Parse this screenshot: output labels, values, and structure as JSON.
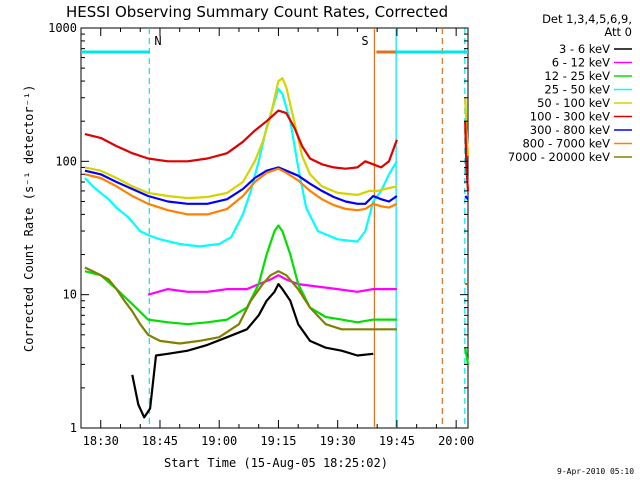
{
  "chart_data": {
    "type": "line",
    "title": "HESSI Observing Summary Count Rates, Corrected",
    "xlabel": "Start Time (15-Aug-05 18:25:02)",
    "ylabel": "Corrected Count Rate (s⁻¹ detector⁻¹)",
    "x_ticks": [
      "18:30",
      "18:45",
      "19:00",
      "19:15",
      "19:30",
      "19:45",
      "20:00"
    ],
    "x_tick_minutes": [
      5,
      20,
      35,
      50,
      65,
      80,
      95
    ],
    "xlim_minutes": [
      0,
      98
    ],
    "y_scale": "log",
    "ylim": [
      1,
      1000
    ],
    "y_ticks": [
      "1",
      "10",
      "100",
      "1000"
    ],
    "y_tick_values": [
      1,
      10,
      100,
      1000
    ],
    "legend_header": [
      "Det 1,3,4,5,6,9,",
      "Att 0"
    ],
    "legend_placement": "right",
    "markers": [
      {
        "label": "N",
        "color": "#00e5ee",
        "segments": [
          [
            0,
            17.3
          ]
        ],
        "y": 660,
        "lines": [
          {
            "x": 17.3,
            "style": "dashed"
          }
        ]
      },
      {
        "label": "S",
        "color": "#e07020",
        "segments": [
          [
            74.8,
            91.5
          ]
        ],
        "y": 660,
        "lines": [
          {
            "x": 74.3,
            "style": "solid"
          },
          {
            "x": 91.5,
            "style": "dashed"
          }
        ]
      },
      {
        "label": "",
        "color": "#00e5ee",
        "segments": [
          [
            79.8,
            98
          ]
        ],
        "y": 660,
        "lines": [
          {
            "x": 79.8,
            "style": "solid"
          },
          {
            "x": 97.2,
            "style": "dashed"
          }
        ]
      }
    ],
    "series": [
      {
        "name": "3 - 6 keV",
        "color": "#000000",
        "x": [
          13,
          14.5,
          16,
          17.5,
          19,
          22,
          27,
          32,
          37,
          42,
          45,
          47,
          49,
          50,
          51,
          53,
          55,
          58,
          62,
          66,
          70,
          74
        ],
        "y": [
          2.5,
          1.5,
          1.2,
          1.4,
          3.5,
          3.6,
          3.8,
          4.2,
          4.8,
          5.5,
          7,
          9,
          10.5,
          12,
          11,
          9,
          6,
          4.5,
          4.0,
          3.8,
          3.5,
          3.6
        ]
      },
      {
        "name": "6 - 12 keV",
        "color": "#ff00ff",
        "x": [
          17,
          22,
          27,
          32,
          37,
          42,
          45,
          48,
          50,
          52,
          55,
          60,
          65,
          70,
          74,
          76,
          78,
          80
        ],
        "y": [
          10,
          11,
          10.5,
          10.5,
          11,
          11,
          12,
          13,
          14,
          13,
          12,
          11.5,
          11,
          10.5,
          11,
          11,
          11,
          11
        ]
      },
      {
        "name": "12 - 25 keV",
        "color": "#00e000",
        "x": [
          1,
          5,
          9,
          13,
          17,
          22,
          27,
          32,
          37,
          42,
          45,
          47,
          49,
          50,
          51,
          53,
          55,
          58,
          62,
          66,
          70,
          74,
          76,
          78,
          80
        ],
        "y": [
          15,
          14,
          11,
          8.5,
          6.5,
          6.2,
          6,
          6.2,
          6.5,
          8,
          12,
          20,
          30,
          33,
          30,
          20,
          12,
          8,
          6.8,
          6.5,
          6.2,
          6.5,
          6.5,
          6.5,
          6.5
        ]
      },
      {
        "name": "25 - 50 keV",
        "color": "#00ffff",
        "x": [
          1,
          3,
          5,
          7,
          9,
          12,
          15,
          17,
          20,
          25,
          30,
          35,
          38,
          41,
          43,
          45,
          47,
          49,
          50,
          51,
          53,
          55,
          57,
          60,
          65,
          70,
          72,
          74,
          76,
          78,
          80
        ],
        "y": [
          75,
          65,
          58,
          52,
          45,
          38,
          30,
          28,
          26,
          24,
          23,
          24,
          27,
          40,
          60,
          100,
          180,
          280,
          350,
          320,
          200,
          90,
          45,
          30,
          26,
          25,
          30,
          50,
          60,
          80,
          100
        ]
      },
      {
        "name": "50 - 100 keV",
        "color": "#d4d400",
        "x": [
          1,
          5,
          9,
          13,
          17,
          22,
          27,
          32,
          37,
          41,
          44,
          46,
          48,
          50,
          51,
          52,
          54,
          56,
          58,
          61,
          65,
          70,
          73,
          75,
          77,
          80
        ],
        "y": [
          90,
          85,
          75,
          65,
          58,
          55,
          53,
          54,
          58,
          70,
          100,
          140,
          220,
          400,
          420,
          360,
          200,
          110,
          80,
          65,
          58,
          56,
          60,
          60,
          62,
          65
        ]
      },
      {
        "name": "100 - 300 keV",
        "color": "#e00000",
        "x": [
          1,
          5,
          9,
          13,
          17,
          22,
          27,
          32,
          37,
          41,
          44,
          47,
          50,
          52,
          54,
          56,
          58,
          61,
          64,
          67,
          70,
          72,
          74,
          76,
          78,
          80
        ],
        "y": [
          160,
          150,
          130,
          115,
          105,
          100,
          100,
          105,
          115,
          140,
          170,
          200,
          240,
          230,
          180,
          130,
          105,
          95,
          90,
          88,
          90,
          100,
          95,
          90,
          100,
          145
        ]
      },
      {
        "name": "300 - 800 keV",
        "color": "#0000ff",
        "x": [
          1,
          5,
          9,
          13,
          17,
          22,
          27,
          32,
          37,
          41,
          44,
          47,
          50,
          52,
          55,
          58,
          61,
          64,
          67,
          70,
          72,
          74,
          76,
          78,
          80
        ],
        "y": [
          85,
          80,
          70,
          62,
          55,
          50,
          48,
          48,
          52,
          62,
          75,
          85,
          90,
          85,
          78,
          68,
          60,
          54,
          50,
          48,
          48,
          55,
          52,
          50,
          55
        ]
      },
      {
        "name": "800 - 7000 keV",
        "color": "#ff8000",
        "x": [
          1,
          5,
          9,
          13,
          17,
          22,
          27,
          32,
          37,
          41,
          44,
          47,
          50,
          52,
          55,
          58,
          61,
          64,
          67,
          70,
          72,
          74,
          76,
          78,
          80
        ],
        "y": [
          80,
          75,
          65,
          55,
          48,
          43,
          40,
          40,
          44,
          55,
          70,
          82,
          88,
          82,
          72,
          60,
          52,
          47,
          44,
          43,
          44,
          48,
          46,
          45,
          48
        ]
      },
      {
        "name": "7000 - 20000 keV",
        "color": "#808000",
        "x": [
          1,
          3,
          5,
          7,
          9,
          11,
          13,
          15,
          17,
          20,
          25,
          30,
          35,
          40,
          43,
          46,
          48,
          50,
          52,
          55,
          58,
          62,
          66,
          70,
          74,
          76,
          78,
          80
        ],
        "y": [
          16,
          15,
          14,
          13,
          11,
          9,
          7.5,
          6,
          5,
          4.5,
          4.3,
          4.5,
          4.8,
          6,
          9,
          12,
          14,
          15,
          14,
          11,
          8,
          6,
          5.5,
          5.5,
          5.5,
          5.5,
          5.5,
          5.5
        ]
      }
    ],
    "series_after_gap": [
      {
        "name": "50 - 100 keV",
        "x": [
          97.3,
          97.6,
          98
        ],
        "y": [
          300,
          180,
          110
        ]
      },
      {
        "name": "100 - 300 keV",
        "x": [
          97.3,
          97.6,
          98
        ],
        "y": [
          200,
          90,
          60
        ]
      },
      {
        "name": "300 - 800 keV",
        "x": [
          97.3,
          98
        ],
        "y": [
          55,
          52
        ]
      },
      {
        "name": "7000 - 20000 keV",
        "x": [
          97.3,
          98
        ],
        "y": [
          12,
          12
        ]
      },
      {
        "name": "12 - 25 keV",
        "x": [
          97.3,
          98
        ],
        "y": [
          4,
          3
        ]
      }
    ]
  },
  "footer_stamp": "9-Apr-2010 05:10"
}
